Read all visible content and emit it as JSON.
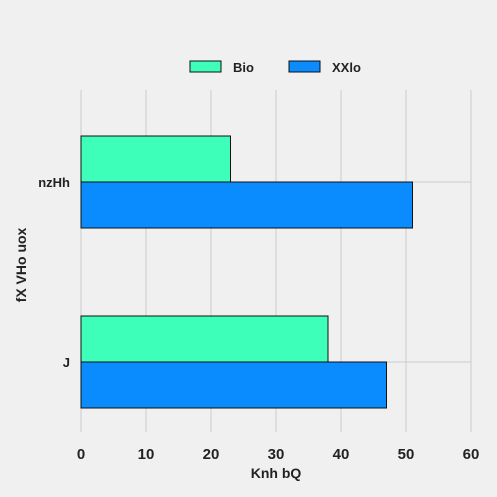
{
  "chart_data": {
    "type": "bar",
    "orientation": "horizontal",
    "categories": [
      "nzHh",
      "J"
    ],
    "series": [
      {
        "name": "Bio",
        "values": [
          23,
          38
        ],
        "color": "#3dffb9"
      },
      {
        "name": "XXlo",
        "values": [
          51,
          47
        ],
        "color": "#0a8cff"
      }
    ],
    "xlabel": "Knh bQ",
    "ylabel": "fX VHo  uox",
    "xlim": [
      0,
      60
    ],
    "xticks": [
      0,
      10,
      20,
      30,
      40,
      50,
      60
    ],
    "grid": true,
    "legend_position": "top-center"
  }
}
